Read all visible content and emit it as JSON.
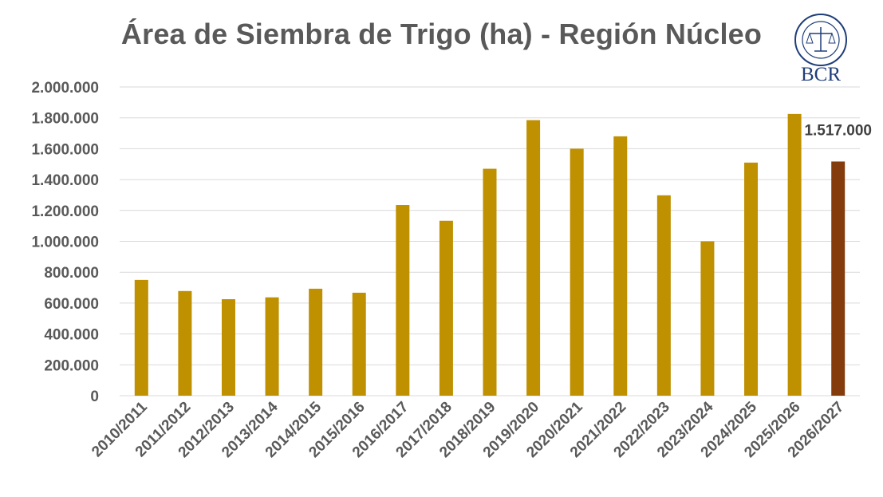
{
  "logo": {
    "text": "BCR",
    "seal_text": "BOLSA DE COMERCIO DE ROSARIO",
    "color": "#1f3d7a"
  },
  "chart_data": {
    "type": "bar",
    "title": "Área de Siembra de Trigo (ha) - Región Núcleo",
    "xlabel": "",
    "ylabel": "",
    "ylim": [
      0,
      2000000
    ],
    "yticks": [
      0,
      200000,
      400000,
      600000,
      800000,
      1000000,
      1200000,
      1400000,
      1600000,
      1800000,
      2000000
    ],
    "ytick_labels": [
      "0",
      "200.000",
      "400.000",
      "600.000",
      "800.000",
      "1.000.000",
      "1.200.000",
      "1.400.000",
      "1.600.000",
      "1.800.000",
      "2.000.000"
    ],
    "grid": true,
    "categories": [
      "2010/2011",
      "2011/2012",
      "2012/2013",
      "2013/2014",
      "2014/2015",
      "2015/2016",
      "2016/2017",
      "2017/2018",
      "2018/2019",
      "2019/2020",
      "2020/2021",
      "2021/2022",
      "2022/2023",
      "2023/2024",
      "2024/2025",
      "2025/2026",
      "2026/2027"
    ],
    "values": [
      750000,
      678000,
      625000,
      637000,
      693000,
      667000,
      1235000,
      1133000,
      1470000,
      1785000,
      1600000,
      1680000,
      1298000,
      1000000,
      1510000,
      1825000,
      1517000
    ],
    "bar_color": "#bf9000",
    "highlight_color": "#843c0c",
    "highlight_index": 16,
    "data_labels": [
      {
        "index": 16,
        "text": "1.517.000"
      }
    ]
  }
}
